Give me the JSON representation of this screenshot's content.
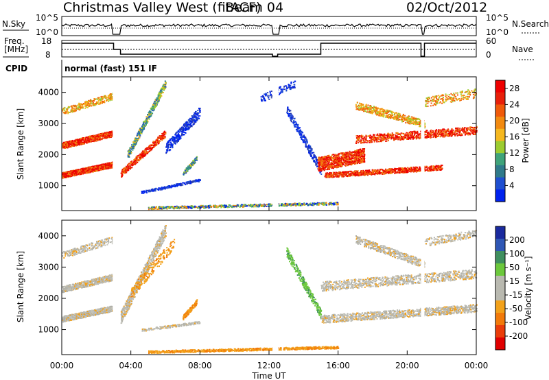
{
  "header": {
    "station": "Christmas Valley West (fitACF)",
    "beam": "Beam 04",
    "date": "02/Oct/2012"
  },
  "noise_panel": {
    "left_label": "N.Sky",
    "right_label": "N.Search",
    "left_ticks": [
      "10^5",
      "10^0"
    ],
    "right_ticks": [
      "10^5",
      "10^0"
    ]
  },
  "freq_panel": {
    "left_label_1": "Freq.",
    "left_label_2": "[MHz]",
    "right_label": "Nave",
    "left_ticks": [
      "18",
      "8"
    ],
    "right_ticks": [
      "60",
      "0"
    ]
  },
  "cpid": {
    "label": "CPID",
    "value": "normal (fast) 151 IF"
  },
  "colors": {
    "power_scale": [
      "#0022ee",
      "#1f4fd0",
      "#2f7a8a",
      "#3fa37a",
      "#9ccc30",
      "#f5b820",
      "#f28a10",
      "#f05a0a",
      "#e8200a",
      "#ee0000"
    ],
    "velocity_scale": [
      "#1a2a9e",
      "#2f57b5",
      "#3f8f5f",
      "#6cc83c",
      "#b9b9b0",
      "#b9b9b0",
      "#f2a11a",
      "#f27a0a",
      "#ea3d0a",
      "#e00000"
    ]
  },
  "chart_data": [
    {
      "type": "heatmap",
      "quantity": "Power",
      "ylabel": "Slant Range [km]",
      "yticks": [
        1000,
        2000,
        3000,
        4000
      ],
      "ylim": [
        200,
        4500
      ],
      "xlim": [
        "00:00",
        "24:00"
      ],
      "colorbar_label": "Power [dB]",
      "colorbar_ticks": [
        4,
        8,
        12,
        16,
        20,
        24,
        28
      ],
      "colorbar_range": [
        0,
        30
      ]
    },
    {
      "type": "heatmap",
      "quantity": "Velocity",
      "ylabel": "Slant Range [km]",
      "yticks": [
        1000,
        2000,
        3000,
        4000
      ],
      "ylim": [
        200,
        4500
      ],
      "xlim": [
        "00:00",
        "24:00"
      ],
      "xticks": [
        "00:00",
        "04:00",
        "08:00",
        "12:00",
        "16:00",
        "20:00",
        "00:00"
      ],
      "xlabel": "Time UT",
      "colorbar_label": "Velocity [m s⁻¹]",
      "colorbar_ticks": [
        200,
        100,
        50,
        15,
        -15,
        -50,
        -100,
        -200
      ]
    }
  ]
}
